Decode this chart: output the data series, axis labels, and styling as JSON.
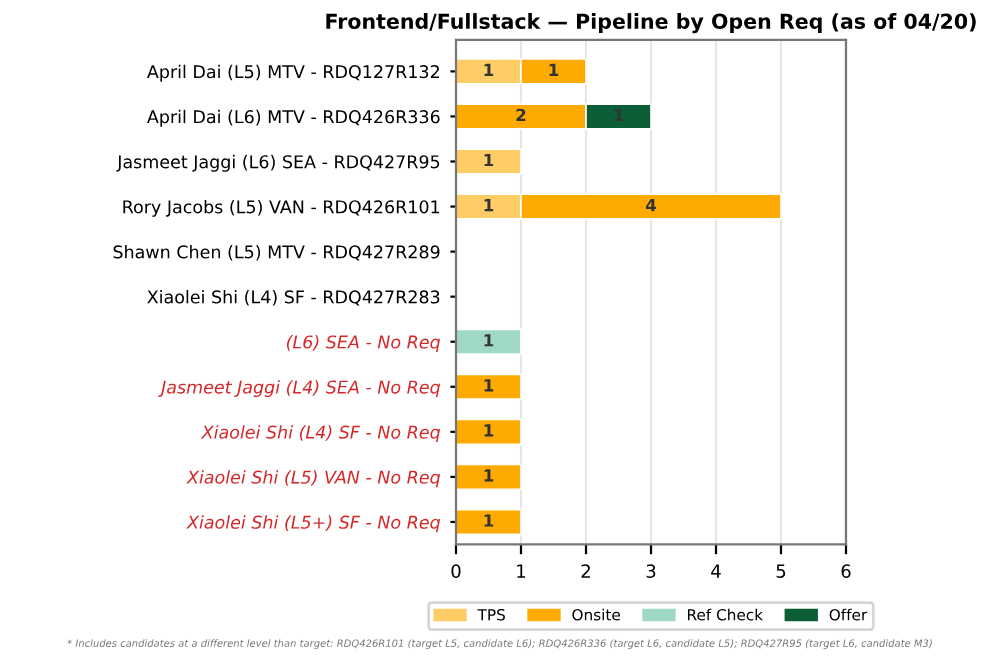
{
  "chart_data": {
    "type": "bar",
    "orientation": "horizontal",
    "stacked": true,
    "title": "Frontend/Fullstack — Pipeline by Open Req (as of 04/20)",
    "categories": [
      "April Dai (L5) MTV - RDQ127R132",
      "April Dai (L6) MTV - RDQ426R336",
      "Jasmeet Jaggi (L6) SEA - RDQ427R95",
      "Rory Jacobs (L5) VAN - RDQ426R101",
      "Shawn Chen (L5) MTV - RDQ427R289",
      "Xiaolei Shi (L4) SF - RDQ427R283",
      "(L6) SEA - No Req",
      "Jasmeet Jaggi (L4) SEA - No Req",
      "Xiaolei Shi (L4) SF - No Req",
      "Xiaolei Shi (L5) VAN - No Req",
      "Xiaolei Shi (L5+) SF - No Req"
    ],
    "series": [
      {
        "name": "TPS",
        "color": "#ffcc66",
        "values": [
          1,
          null,
          1,
          1,
          null,
          null,
          null,
          null,
          null,
          null,
          null
        ]
      },
      {
        "name": "Onsite",
        "color": "#ffaa00",
        "values": [
          1,
          2,
          null,
          4,
          null,
          null,
          null,
          1,
          1,
          1,
          1
        ]
      },
      {
        "name": "Ref Check",
        "color": "#9fd8c4",
        "values": [
          null,
          null,
          null,
          null,
          null,
          null,
          1,
          null,
          null,
          null,
          null
        ]
      },
      {
        "name": "Offer",
        "color": "#0b5e35",
        "values": [
          null,
          1,
          null,
          null,
          null,
          null,
          null,
          null,
          null,
          null,
          null
        ]
      }
    ],
    "xlim": [
      0,
      6
    ],
    "xticks": [
      0,
      1,
      2,
      3,
      4,
      5,
      6
    ],
    "grid": "x",
    "legend": "bottom",
    "data_labels": true,
    "annotations": [
      "* Includes candidates at a different level than target: RDQ426R101 (target L5, candidate L6); RDQ426R336 (target L6, candidate L5); RDQ427R95 (target L6, candidate M3)"
    ]
  }
}
